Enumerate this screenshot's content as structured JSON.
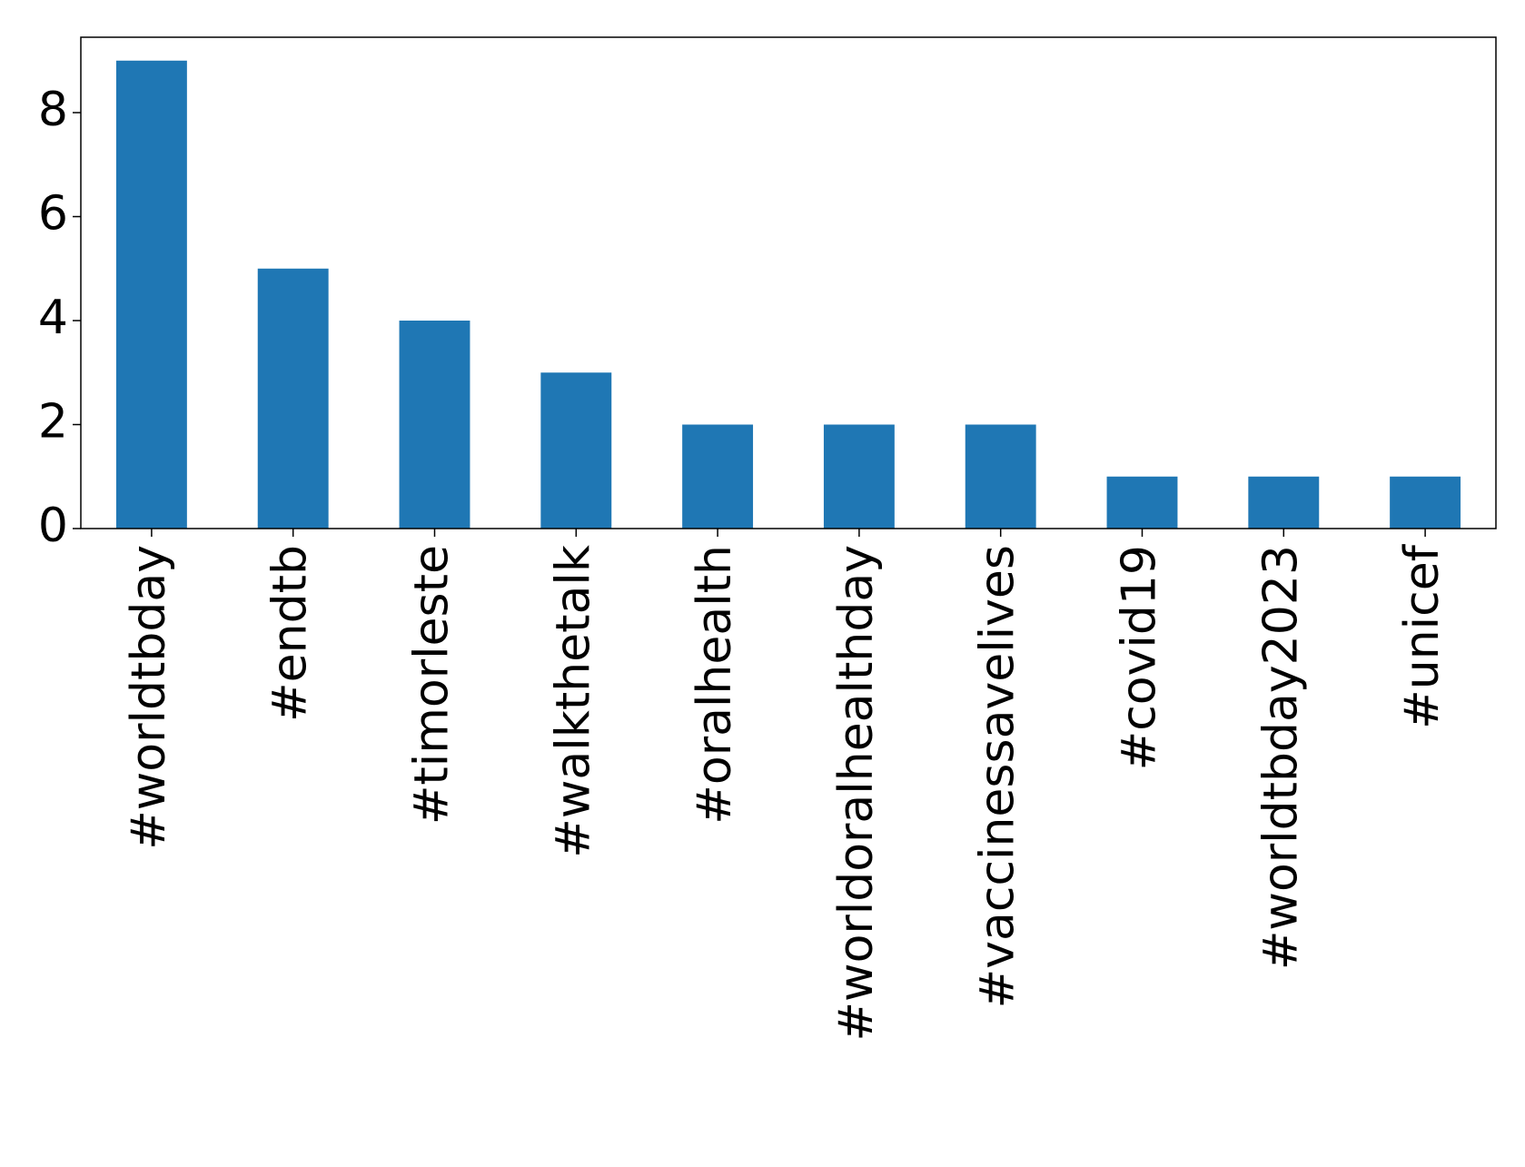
{
  "chart_data": {
    "type": "bar",
    "categories": [
      "#worldtbday",
      "#endtb",
      "#timorleste",
      "#walkthetalk",
      "#oralhealth",
      "#worldoralhealthday",
      "#vaccinessavelives",
      "#covid19",
      "#worldtbday2023",
      "#unicef"
    ],
    "values": [
      9,
      5,
      4,
      3,
      2,
      2,
      2,
      1,
      1,
      1
    ],
    "color": "#1f77b4",
    "ylim": [
      0,
      9.45
    ],
    "yticks": [
      0,
      2,
      4,
      6,
      8
    ],
    "grid": false
  }
}
